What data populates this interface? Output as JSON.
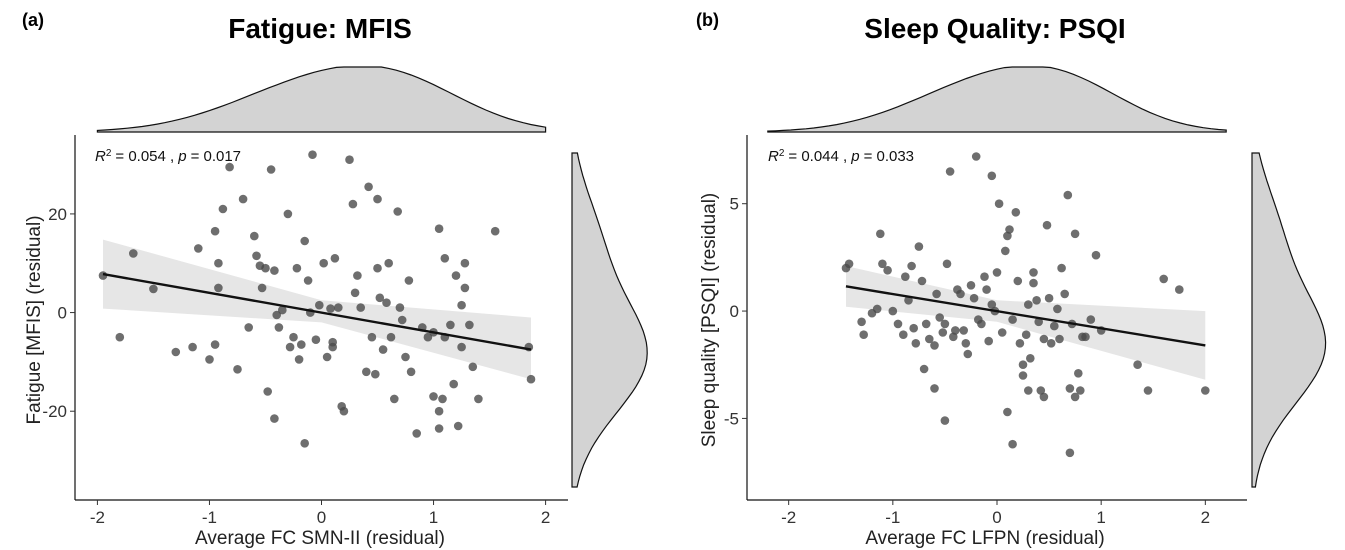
{
  "chart_data": [
    {
      "type": "scatter",
      "panel_letter": "(a)",
      "title": "Fatigue: MFIS",
      "xlabel": "Average FC SMN-II (residual)",
      "ylabel": "Fatigue [MFIS] (residual)",
      "annotation": {
        "r2_text": "= 0.054 ,",
        "p_text": "= 0.017",
        "r2_label": "R",
        "r2_sup": "2",
        "p_label": "p"
      },
      "xlim": [
        -2.2,
        2.2
      ],
      "ylim": [
        -38,
        36
      ],
      "xticks": [
        -2,
        -1,
        0,
        1,
        2
      ],
      "xtick_labels": [
        "-2",
        "-1",
        "0",
        "1",
        "2"
      ],
      "yticks": [
        -20,
        0,
        20
      ],
      "ytick_labels": [
        "-20",
        "0",
        "20"
      ],
      "fit": {
        "x": [
          -1.95,
          1.87
        ],
        "y": [
          7.8,
          -7.5
        ]
      },
      "ci_band": {
        "x": [
          -1.95,
          0,
          1.87
        ],
        "lower": [
          0.8,
          -2.0,
          -13.5
        ],
        "upper": [
          14.8,
          2.5,
          -1.0
        ]
      },
      "points": [
        [
          -1.95,
          7.5
        ],
        [
          -1.8,
          -5
        ],
        [
          -1.68,
          12
        ],
        [
          -1.5,
          4.8
        ],
        [
          -1.3,
          -8
        ],
        [
          -1.15,
          -7
        ],
        [
          -1.1,
          13
        ],
        [
          -1.0,
          -9.5
        ],
        [
          -0.95,
          -6.5
        ],
        [
          -0.95,
          16.5
        ],
        [
          -0.92,
          10
        ],
        [
          -0.92,
          5
        ],
        [
          -0.88,
          21
        ],
        [
          -0.82,
          29.5
        ],
        [
          -0.75,
          -11.5
        ],
        [
          -0.7,
          23
        ],
        [
          -0.65,
          -3
        ],
        [
          -0.6,
          15.5
        ],
        [
          -0.58,
          11.5
        ],
        [
          -0.55,
          9.5
        ],
        [
          -0.53,
          5
        ],
        [
          -0.5,
          9
        ],
        [
          -0.48,
          -16
        ],
        [
          -0.45,
          29
        ],
        [
          -0.42,
          -21.5
        ],
        [
          -0.42,
          8.5
        ],
        [
          -0.4,
          -0.5
        ],
        [
          -0.38,
          -3
        ],
        [
          -0.35,
          0.5
        ],
        [
          -0.3,
          20
        ],
        [
          -0.28,
          -7
        ],
        [
          -0.25,
          -5
        ],
        [
          -0.22,
          9
        ],
        [
          -0.2,
          -9.5
        ],
        [
          -0.18,
          -6.5
        ],
        [
          -0.15,
          -26.5
        ],
        [
          -0.15,
          14.5
        ],
        [
          -0.12,
          6.5
        ],
        [
          -0.1,
          0
        ],
        [
          -0.08,
          32
        ],
        [
          -0.05,
          -5.5
        ],
        [
          -0.02,
          1.5
        ],
        [
          0.02,
          10
        ],
        [
          0.05,
          -9
        ],
        [
          0.08,
          0.8
        ],
        [
          0.1,
          -7
        ],
        [
          0.1,
          -6
        ],
        [
          0.12,
          11
        ],
        [
          0.15,
          1
        ],
        [
          0.18,
          -19
        ],
        [
          0.2,
          -20
        ],
        [
          0.25,
          31
        ],
        [
          0.28,
          22
        ],
        [
          0.3,
          4
        ],
        [
          0.32,
          7.5
        ],
        [
          0.35,
          1
        ],
        [
          0.4,
          -12
        ],
        [
          0.42,
          25.5
        ],
        [
          0.45,
          -5
        ],
        [
          0.48,
          -12.5
        ],
        [
          0.5,
          23
        ],
        [
          0.5,
          9
        ],
        [
          0.52,
          3
        ],
        [
          0.55,
          -7.5
        ],
        [
          0.58,
          2
        ],
        [
          0.6,
          10
        ],
        [
          0.62,
          -5
        ],
        [
          0.65,
          -17.5
        ],
        [
          0.68,
          20.5
        ],
        [
          0.7,
          1
        ],
        [
          0.72,
          -1.5
        ],
        [
          0.75,
          -9
        ],
        [
          0.78,
          6.5
        ],
        [
          0.8,
          -12
        ],
        [
          0.85,
          -24.5
        ],
        [
          0.9,
          -3
        ],
        [
          0.95,
          -5
        ],
        [
          1.0,
          -17
        ],
        [
          1.0,
          -4
        ],
        [
          1.05,
          17
        ],
        [
          1.1,
          -5
        ],
        [
          1.18,
          -14.5
        ],
        [
          1.25,
          1.5
        ],
        [
          1.28,
          5
        ],
        [
          1.32,
          -2.5
        ],
        [
          1.35,
          -11
        ],
        [
          1.4,
          -17.5
        ],
        [
          1.05,
          -23.5
        ],
        [
          1.05,
          -20
        ],
        [
          1.08,
          -17.5
        ],
        [
          1.1,
          11
        ],
        [
          1.15,
          -2.5
        ],
        [
          1.2,
          7.5
        ],
        [
          1.22,
          -23
        ],
        [
          1.25,
          -7
        ],
        [
          1.28,
          10
        ],
        [
          1.55,
          16.5
        ],
        [
          1.85,
          -7
        ],
        [
          1.87,
          -13.5
        ]
      ],
      "x_density_peak": 0.25,
      "y_density_peak": -8
    },
    {
      "type": "scatter",
      "panel_letter": "(b)",
      "title": "Sleep Quality: PSQI",
      "xlabel": "Average FC LFPN (residual)",
      "ylabel": "Sleep quality [PSQI] (residual)",
      "annotation": {
        "r2_text": "= 0.044 ,",
        "p_text": "= 0.033",
        "r2_label": "R",
        "r2_sup": "2",
        "p_label": "p"
      },
      "xlim": [
        -2.4,
        2.4
      ],
      "ylim": [
        -8.8,
        8.2
      ],
      "xticks": [
        -2,
        -1,
        0,
        1,
        2
      ],
      "xtick_labels": [
        "-2",
        "-1",
        "0",
        "1",
        "2"
      ],
      "yticks": [
        -5,
        0,
        5
      ],
      "ytick_labels": [
        "-5",
        "0",
        "5"
      ],
      "fit": {
        "x": [
          -1.45,
          2.0
        ],
        "y": [
          1.15,
          -1.6
        ]
      },
      "ci_band": {
        "x": [
          -1.45,
          0,
          2.0
        ],
        "lower": [
          0.2,
          -0.5,
          -3.2
        ],
        "upper": [
          2.1,
          0.5,
          0.0
        ]
      },
      "points": [
        [
          -1.45,
          2.0
        ],
        [
          -1.42,
          2.2
        ],
        [
          -1.3,
          -0.5
        ],
        [
          -1.28,
          -1.1
        ],
        [
          -1.2,
          -0.1
        ],
        [
          -1.15,
          0.1
        ],
        [
          -1.12,
          3.6
        ],
        [
          -1.1,
          2.2
        ],
        [
          -1.05,
          1.9
        ],
        [
          -1.0,
          0.0
        ],
        [
          -0.95,
          -0.6
        ],
        [
          -0.9,
          -1.1
        ],
        [
          -0.88,
          1.6
        ],
        [
          -0.85,
          0.5
        ],
        [
          -0.82,
          2.1
        ],
        [
          -0.8,
          -0.8
        ],
        [
          -0.78,
          -1.5
        ],
        [
          -0.75,
          3.0
        ],
        [
          -0.72,
          1.4
        ],
        [
          -0.7,
          -2.7
        ],
        [
          -0.68,
          -0.6
        ],
        [
          -0.65,
          -1.3
        ],
        [
          -0.6,
          -1.6
        ],
        [
          -0.58,
          0.8
        ],
        [
          -0.55,
          -0.3
        ],
        [
          -0.52,
          -1.0
        ],
        [
          -0.5,
          -0.6
        ],
        [
          -0.5,
          -5.1
        ],
        [
          -0.48,
          2.2
        ],
        [
          -0.45,
          6.5
        ],
        [
          -0.42,
          -1.2
        ],
        [
          -0.4,
          -0.9
        ],
        [
          -0.38,
          1.0
        ],
        [
          -0.35,
          0.8
        ],
        [
          -0.32,
          -0.9
        ],
        [
          -0.3,
          -1.5
        ],
        [
          -0.28,
          -2.0
        ],
        [
          -0.25,
          1.2
        ],
        [
          -0.22,
          0.6
        ],
        [
          -0.2,
          7.2
        ],
        [
          -0.18,
          -0.4
        ],
        [
          -0.15,
          -0.6
        ],
        [
          -0.12,
          1.6
        ],
        [
          -0.1,
          1.0
        ],
        [
          -0.08,
          -1.4
        ],
        [
          -0.05,
          0.3
        ],
        [
          -0.02,
          0.0
        ],
        [
          0.0,
          1.8
        ],
        [
          0.02,
          5.0
        ],
        [
          0.05,
          -1.0
        ],
        [
          0.08,
          2.8
        ],
        [
          0.1,
          3.5
        ],
        [
          0.12,
          3.8
        ],
        [
          0.15,
          -0.4
        ],
        [
          0.18,
          4.6
        ],
        [
          0.2,
          1.4
        ],
        [
          0.22,
          -1.5
        ],
        [
          0.25,
          -2.5
        ],
        [
          0.28,
          -1.1
        ],
        [
          0.3,
          0.3
        ],
        [
          0.32,
          -2.2
        ],
        [
          0.35,
          1.8
        ],
        [
          0.38,
          0.5
        ],
        [
          0.4,
          -0.5
        ],
        [
          0.42,
          -3.7
        ],
        [
          0.45,
          -4.0
        ],
        [
          0.48,
          4.0
        ],
        [
          0.5,
          0.6
        ],
        [
          0.52,
          -1.5
        ],
        [
          0.55,
          -0.7
        ],
        [
          0.58,
          0.1
        ],
        [
          0.6,
          -1.3
        ],
        [
          0.62,
          2.0
        ],
        [
          0.65,
          0.8
        ],
        [
          0.68,
          5.4
        ],
        [
          0.7,
          -3.6
        ],
        [
          0.72,
          -0.6
        ],
        [
          0.75,
          3.6
        ],
        [
          0.78,
          -2.9
        ],
        [
          0.8,
          -3.7
        ],
        [
          0.82,
          -1.2
        ],
        [
          0.9,
          -0.4
        ],
        [
          0.95,
          2.6
        ],
        [
          1.0,
          -0.9
        ],
        [
          0.1,
          -4.7
        ],
        [
          0.15,
          -6.2
        ],
        [
          0.25,
          -3.0
        ],
        [
          0.3,
          -3.7
        ],
        [
          0.35,
          1.3
        ],
        [
          0.45,
          -1.3
        ],
        [
          0.7,
          -6.6
        ],
        [
          0.75,
          -4.0
        ],
        [
          0.85,
          -1.2
        ],
        [
          1.35,
          -2.5
        ],
        [
          1.45,
          -3.7
        ],
        [
          1.6,
          1.5
        ],
        [
          1.75,
          1.0
        ],
        [
          2.0,
          -3.7
        ],
        [
          -0.6,
          -3.6
        ],
        [
          -0.05,
          6.3
        ]
      ],
      "x_density_peak": 0.2,
      "y_density_peak": -1.5
    }
  ]
}
